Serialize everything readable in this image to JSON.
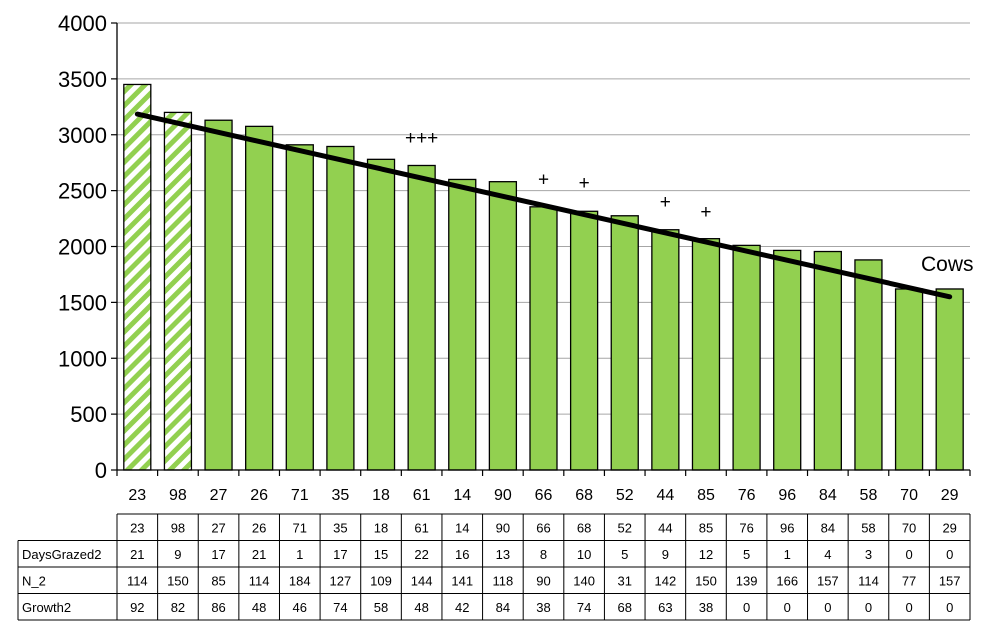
{
  "chart_data": {
    "type": "bar",
    "categories": [
      "23",
      "98",
      "27",
      "26",
      "71",
      "35",
      "18",
      "61",
      "14",
      "90",
      "66",
      "68",
      "52",
      "44",
      "85",
      "76",
      "96",
      "84",
      "58",
      "70",
      "29"
    ],
    "values": [
      3450,
      3200,
      3130,
      3075,
      2910,
      2895,
      2780,
      2725,
      2600,
      2580,
      2355,
      2315,
      2275,
      2150,
      2070,
      2010,
      1965,
      1955,
      1880,
      1620,
      1620
    ],
    "hatched_categories": [
      "23",
      "98"
    ],
    "ylim": [
      0,
      4000
    ],
    "yticks": [
      "0",
      "500",
      "1000",
      "1500",
      "2000",
      "2500",
      "3000",
      "3500",
      "4000"
    ],
    "grid": true,
    "trendline": {
      "type": "linear",
      "from": 3185,
      "to": 1550
    },
    "trend_label": "Cows",
    "markers": [
      {
        "category": "61",
        "text": "+++",
        "y": 2970
      },
      {
        "category": "66",
        "text": "+",
        "y": 2600
      },
      {
        "category": "68",
        "text": "+",
        "y": 2570
      },
      {
        "category": "44",
        "text": "+",
        "y": 2400
      },
      {
        "category": "85",
        "text": "+",
        "y": 2310
      }
    ],
    "colors": {
      "bar_fill": "#92d050",
      "bar_stroke": "#000000",
      "grid": "#a6a6a6",
      "trendline": "#000000"
    },
    "table": {
      "header": [
        "23",
        "98",
        "27",
        "26",
        "71",
        "35",
        "18",
        "61",
        "14",
        "90",
        "66",
        "68",
        "52",
        "44",
        "85",
        "76",
        "96",
        "84",
        "58",
        "70",
        "29"
      ],
      "rows": [
        {
          "label": "DaysGrazed2",
          "values": [
            "21",
            "9",
            "17",
            "21",
            "1",
            "17",
            "15",
            "22",
            "16",
            "13",
            "8",
            "10",
            "5",
            "9",
            "12",
            "5",
            "1",
            "4",
            "3",
            "0",
            "0"
          ]
        },
        {
          "label": "N_2",
          "values": [
            "114",
            "150",
            "85",
            "114",
            "184",
            "127",
            "109",
            "144",
            "141",
            "118",
            "90",
            "140",
            "31",
            "142",
            "150",
            "139",
            "166",
            "157",
            "114",
            "77",
            "157"
          ]
        },
        {
          "label": "Growth2",
          "values": [
            "92",
            "82",
            "86",
            "48",
            "46",
            "74",
            "58",
            "48",
            "42",
            "84",
            "38",
            "74",
            "68",
            "63",
            "38",
            "0",
            "0",
            "0",
            "0",
            "0",
            "0"
          ]
        }
      ]
    }
  }
}
